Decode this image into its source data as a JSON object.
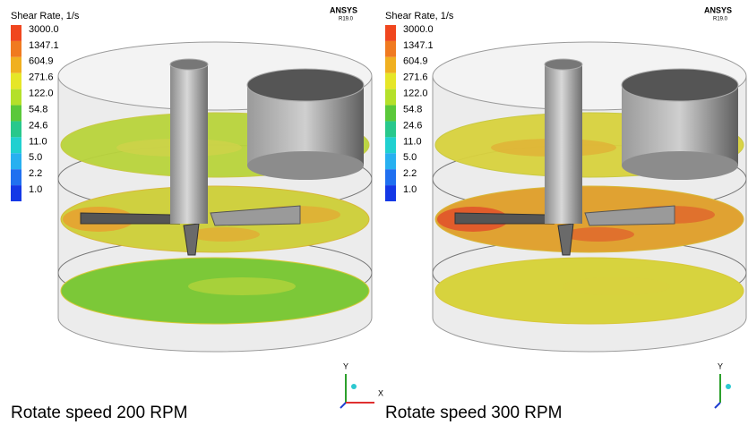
{
  "panels": [
    {
      "legend": {
        "title": "Shear Rate, 1/s",
        "labels": [
          "3000.0",
          "1347.1",
          "604.9",
          "271.6",
          "122.0",
          "54.8",
          "24.6",
          "11.0",
          "5.0",
          "2.2",
          "1.0"
        ]
      },
      "brand": "ANSYS",
      "version": "R19.0",
      "axes": {
        "y": "Y",
        "x": "X"
      },
      "caption": "Rotate speed 200 RPM"
    },
    {
      "legend": {
        "title": "Shear Rate, 1/s",
        "labels": [
          "3000.0",
          "1347.1",
          "604.9",
          "271.6",
          "122.0",
          "54.8",
          "24.6",
          "11.0",
          "5.0",
          "2.2",
          "1.0"
        ]
      },
      "brand": "ANSYS",
      "version": "R19.0",
      "axes": {
        "y": "Y"
      },
      "caption": "Rotate speed 300 RPM"
    }
  ]
}
